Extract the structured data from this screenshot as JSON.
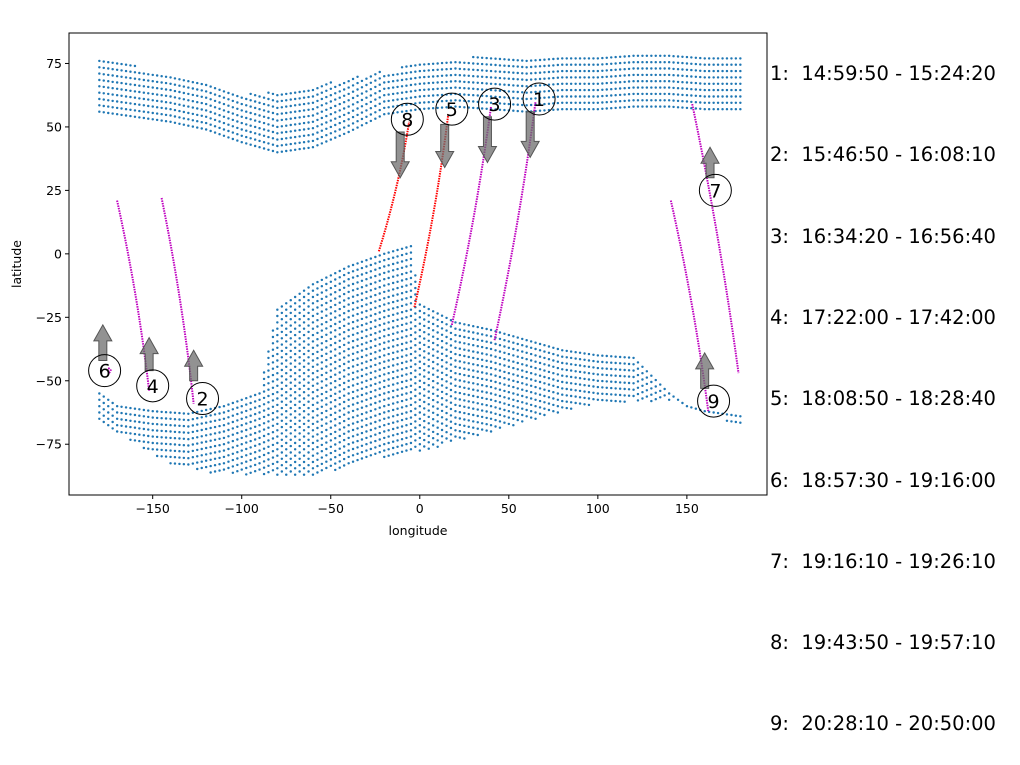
{
  "chart_data": {
    "type": "scatter",
    "xlabel": "longitude",
    "ylabel": "latitude",
    "xlim": [
      -197,
      195
    ],
    "ylim": [
      -95,
      87
    ],
    "xticks": [
      -150,
      -100,
      -50,
      0,
      50,
      100,
      150
    ],
    "yticks": [
      -75,
      -50,
      -25,
      0,
      25,
      50,
      75
    ],
    "grid": false,
    "colors": {
      "land_points": "#1f77b4",
      "track_red": "#ff0000",
      "track_magenta": "#bf00bf",
      "arrow": "#6e6e6e"
    },
    "land_region_north": {
      "description_points": "dotted coverage region",
      "x_range": [
        -180,
        180
      ],
      "lat_bottom_profile": [
        [
          -180,
          56
        ],
        [
          -160,
          54
        ],
        [
          -140,
          52
        ],
        [
          -120,
          49
        ],
        [
          -100,
          44
        ],
        [
          -80,
          40
        ],
        [
          -60,
          42
        ],
        [
          -40,
          48
        ],
        [
          -20,
          55
        ],
        [
          0,
          57
        ],
        [
          20,
          58
        ],
        [
          40,
          57
        ],
        [
          60,
          56
        ],
        [
          80,
          57
        ],
        [
          100,
          57
        ],
        [
          120,
          58
        ],
        [
          140,
          58
        ],
        [
          160,
          57
        ],
        [
          180,
          57
        ]
      ],
      "lat_top_profile": [
        [
          -180,
          76
        ],
        [
          -160,
          74
        ],
        [
          -140,
          71
        ],
        [
          -120,
          67
        ],
        [
          -100,
          63
        ],
        [
          -80,
          64
        ],
        [
          -60,
          66
        ],
        [
          -40,
          69
        ],
        [
          -20,
          72
        ],
        [
          0,
          75
        ],
        [
          20,
          77
        ],
        [
          40,
          78
        ],
        [
          60,
          78
        ],
        [
          80,
          79
        ],
        [
          100,
          79
        ],
        [
          120,
          79
        ],
        [
          140,
          79
        ],
        [
          160,
          78
        ],
        [
          180,
          78
        ]
      ]
    },
    "land_region_south": {
      "top_profile": [
        [
          -180,
          -55
        ],
        [
          -170,
          -60
        ],
        [
          -150,
          -62
        ],
        [
          -130,
          -63
        ],
        [
          -110,
          -60
        ],
        [
          -90,
          -55
        ],
        [
          -80,
          -22
        ],
        [
          -60,
          -12
        ],
        [
          -40,
          -5
        ],
        [
          -20,
          0
        ],
        [
          -5,
          3
        ],
        [
          0,
          -20
        ],
        [
          20,
          -27
        ],
        [
          40,
          -30
        ],
        [
          60,
          -34
        ],
        [
          80,
          -38
        ],
        [
          100,
          -40
        ],
        [
          120,
          -41
        ],
        [
          130,
          -48
        ],
        [
          140,
          -55
        ],
        [
          150,
          -60
        ],
        [
          160,
          -62
        ],
        [
          180,
          -64
        ]
      ],
      "bottom_profile": [
        [
          -180,
          -65
        ],
        [
          -160,
          -75
        ],
        [
          -140,
          -83
        ],
        [
          -120,
          -86
        ],
        [
          -100,
          -87
        ],
        [
          -80,
          -87
        ],
        [
          -60,
          -87
        ],
        [
          -40,
          -84
        ],
        [
          -20,
          -80
        ],
        [
          0,
          -78
        ],
        [
          20,
          -74
        ],
        [
          40,
          -70
        ],
        [
          60,
          -66
        ],
        [
          80,
          -62
        ],
        [
          100,
          -59
        ],
        [
          120,
          -58
        ],
        [
          140,
          -58
        ],
        [
          160,
          -62
        ],
        [
          180,
          -68
        ]
      ]
    },
    "tracks": [
      {
        "label": "1",
        "color": "magenta",
        "x": [
          42,
          65
        ],
        "y": [
          -34,
          60
        ],
        "circle": [
          67,
          61
        ],
        "arrow": {
          "x": 62,
          "from": 56,
          "to": 38
        }
      },
      {
        "label": "2",
        "color": "magenta",
        "x": [
          -145,
          -127
        ],
        "y": [
          22,
          -59
        ],
        "circle": [
          -122,
          -57
        ],
        "arrow": {
          "x": -127,
          "from": -50,
          "to": -38
        }
      },
      {
        "label": "3",
        "color": "magenta",
        "x": [
          18,
          40
        ],
        "y": [
          -28,
          58
        ],
        "circle": [
          42,
          59
        ],
        "arrow": {
          "x": 38,
          "from": 54,
          "to": 36
        }
      },
      {
        "label": "4",
        "color": "magenta",
        "x": [
          -170,
          -152
        ],
        "y": [
          21,
          -54
        ],
        "circle": [
          -150,
          -52
        ],
        "arrow": {
          "x": -152,
          "from": -46,
          "to": -33
        }
      },
      {
        "label": "5",
        "color": "red",
        "x": [
          -3,
          16
        ],
        "y": [
          -21,
          55
        ],
        "circle": [
          18,
          57
        ],
        "arrow": {
          "x": 14,
          "from": 51,
          "to": 34
        }
      },
      {
        "label": "6",
        "color": "magenta",
        "x": [
          -175,
          -175
        ],
        "y": [
          -45,
          -47
        ],
        "circle": [
          -177,
          -46
        ],
        "arrow": {
          "x": -178,
          "from": -42,
          "to": -28
        }
      },
      {
        "label": "7",
        "color": "magenta",
        "x": [
          153,
          179
        ],
        "y": [
          59,
          -47
        ],
        "circle": [
          166,
          25
        ],
        "arrow": {
          "x": 163,
          "from": 30,
          "to": 42
        }
      },
      {
        "label": "8",
        "color": "red",
        "x": [
          -23,
          -6
        ],
        "y": [
          1,
          52
        ],
        "circle": [
          -7,
          53
        ],
        "arrow": {
          "x": -11,
          "from": 48,
          "to": 30
        }
      },
      {
        "label": "9",
        "color": "magenta",
        "x": [
          141,
          162
        ],
        "y": [
          21,
          -62
        ],
        "circle": [
          165,
          -58
        ],
        "arrow": {
          "x": 160,
          "from": -53,
          "to": -39
        }
      }
    ]
  },
  "legend": [
    "1:  14:59:50 - 15:24:20",
    "2:  15:46:50 - 16:08:10",
    "3:  16:34:20 - 16:56:40",
    "4:  17:22:00 - 17:42:00",
    "5:  18:08:50 - 18:28:40",
    "6:  18:57:30 - 19:16:00",
    "7:  19:16:10 - 19:26:10",
    "8:  19:43:50 - 19:57:10",
    "9:  20:28:10 - 20:50:00"
  ]
}
